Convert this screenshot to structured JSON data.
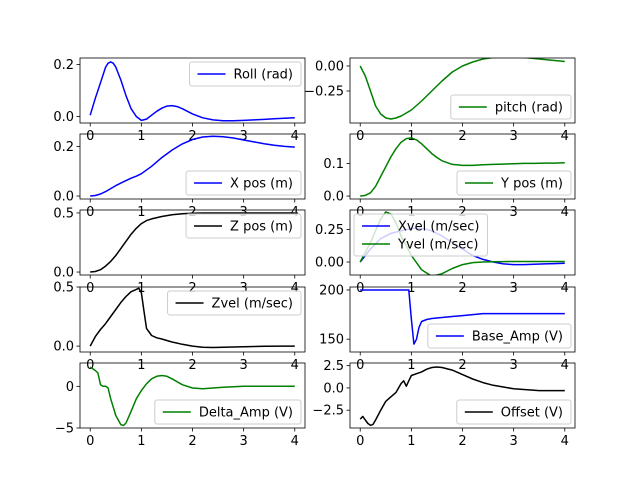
{
  "chart_data": [
    {
      "type": "line",
      "legend_position": "upper-right",
      "xlim": [
        -0.2,
        4.2
      ],
      "ylim": [
        -0.025,
        0.225
      ],
      "xticks": [
        0,
        1,
        2,
        3,
        4
      ],
      "xtick_labels": [
        "0",
        "1",
        "2",
        "3",
        "4"
      ],
      "yticks": [
        0,
        0.2
      ],
      "ytick_labels": [
        "0.0",
        "0.2"
      ],
      "series": [
        {
          "name": "Roll (rad)",
          "color": "#0000ff",
          "x": [
            0,
            0.1,
            0.2,
            0.3,
            0.35,
            0.4,
            0.45,
            0.5,
            0.6,
            0.7,
            0.8,
            0.9,
            1.0,
            1.1,
            1.2,
            1.3,
            1.4,
            1.5,
            1.6,
            1.7,
            1.8,
            1.9,
            2.0,
            2.2,
            2.4,
            2.6,
            2.8,
            3.0,
            3.2,
            3.4,
            3.6,
            3.8,
            4.0
          ],
          "y": [
            0.005,
            0.07,
            0.13,
            0.19,
            0.205,
            0.21,
            0.205,
            0.19,
            0.14,
            0.08,
            0.03,
            0.0,
            -0.015,
            -0.01,
            0.005,
            0.02,
            0.032,
            0.04,
            0.042,
            0.038,
            0.03,
            0.02,
            0.01,
            -0.005,
            -0.013,
            -0.016,
            -0.016,
            -0.015,
            -0.013,
            -0.011,
            -0.009,
            -0.007,
            -0.005
          ]
        }
      ]
    },
    {
      "type": "line",
      "legend_position": "lower-right",
      "xlim": [
        -0.2,
        4.2
      ],
      "ylim": [
        -0.57,
        0.08
      ],
      "xticks": [
        0,
        1,
        2,
        3,
        4
      ],
      "xtick_labels": [
        "0",
        "1",
        "2",
        "3",
        "4"
      ],
      "yticks": [
        0,
        -0.25
      ],
      "ytick_labels": [
        "0.00",
        "−0.25"
      ],
      "series": [
        {
          "name": "pitch (rad)",
          "color": "#008000",
          "x": [
            0,
            0.1,
            0.2,
            0.3,
            0.4,
            0.5,
            0.6,
            0.7,
            0.8,
            0.9,
            1.0,
            1.2,
            1.4,
            1.6,
            1.8,
            2.0,
            2.2,
            2.4,
            2.6,
            2.8,
            3.0,
            3.2,
            3.4,
            3.6,
            3.8,
            4.0
          ],
          "y": [
            0,
            -0.1,
            -0.25,
            -0.4,
            -0.48,
            -0.52,
            -0.53,
            -0.52,
            -0.5,
            -0.47,
            -0.44,
            -0.35,
            -0.25,
            -0.15,
            -0.06,
            0.0,
            0.04,
            0.07,
            0.085,
            0.09,
            0.09,
            0.085,
            0.075,
            0.065,
            0.055,
            0.045
          ]
        }
      ]
    },
    {
      "type": "line",
      "legend_position": "lower-right",
      "xlim": [
        -0.2,
        4.2
      ],
      "ylim": [
        -0.012,
        0.25
      ],
      "xticks": [
        0,
        1,
        2,
        3,
        4
      ],
      "xtick_labels": [
        "0",
        "1",
        "2",
        "3",
        "4"
      ],
      "yticks": [
        0,
        0.2
      ],
      "ytick_labels": [
        "0.0",
        "0.2"
      ],
      "series": [
        {
          "name": "X pos (m)",
          "color": "#0000ff",
          "x": [
            0,
            0.1,
            0.2,
            0.3,
            0.4,
            0.5,
            0.6,
            0.7,
            0.8,
            0.9,
            1.0,
            1.2,
            1.4,
            1.6,
            1.8,
            2.0,
            2.2,
            2.4,
            2.6,
            2.8,
            3.0,
            3.2,
            3.4,
            3.6,
            3.8,
            4.0
          ],
          "y": [
            0,
            0.002,
            0.008,
            0.018,
            0.03,
            0.042,
            0.052,
            0.062,
            0.072,
            0.08,
            0.09,
            0.12,
            0.155,
            0.185,
            0.21,
            0.228,
            0.238,
            0.241,
            0.239,
            0.234,
            0.226,
            0.218,
            0.211,
            0.205,
            0.2,
            0.197
          ]
        }
      ]
    },
    {
      "type": "line",
      "legend_position": "lower-right",
      "xlim": [
        -0.2,
        4.2
      ],
      "ylim": [
        -0.009,
        0.19
      ],
      "xticks": [
        0,
        1,
        2,
        3,
        4
      ],
      "xtick_labels": [
        "0",
        "1",
        "2",
        "3",
        "4"
      ],
      "yticks": [
        0,
        0.1
      ],
      "ytick_labels": [
        "0.0",
        "0.1"
      ],
      "series": [
        {
          "name": "Y pos (m)",
          "color": "#008000",
          "x": [
            0,
            0.1,
            0.2,
            0.3,
            0.4,
            0.5,
            0.6,
            0.7,
            0.8,
            0.9,
            1.0,
            1.1,
            1.2,
            1.3,
            1.4,
            1.5,
            1.6,
            1.8,
            2.0,
            2.2,
            2.4,
            2.6,
            2.8,
            3.0,
            3.2,
            3.4,
            3.6,
            3.8,
            4.0
          ],
          "y": [
            0,
            0.002,
            0.01,
            0.03,
            0.06,
            0.09,
            0.12,
            0.145,
            0.165,
            0.176,
            0.178,
            0.172,
            0.16,
            0.145,
            0.13,
            0.118,
            0.108,
            0.097,
            0.094,
            0.094,
            0.096,
            0.097,
            0.098,
            0.099,
            0.1,
            0.1,
            0.101,
            0.101,
            0.102
          ]
        }
      ]
    },
    {
      "type": "line",
      "legend_position": "upper-right",
      "xlim": [
        -0.2,
        4.2
      ],
      "ylim": [
        -0.025,
        0.525
      ],
      "xticks": [
        0,
        1,
        2,
        3,
        4
      ],
      "xtick_labels": [
        "0",
        "1",
        "2",
        "3",
        "4"
      ],
      "yticks": [
        0,
        0.5
      ],
      "ytick_labels": [
        "0.0",
        "0.5"
      ],
      "series": [
        {
          "name": "Z pos (m)",
          "color": "#000000",
          "x": [
            0,
            0.1,
            0.2,
            0.3,
            0.4,
            0.5,
            0.6,
            0.7,
            0.8,
            0.9,
            1.0,
            1.1,
            1.2,
            1.4,
            1.6,
            1.8,
            2.0,
            2.2,
            2.4,
            2.6,
            3.0,
            3.4,
            3.8,
            4.0
          ],
          "y": [
            0,
            0.005,
            0.02,
            0.05,
            0.09,
            0.14,
            0.2,
            0.26,
            0.32,
            0.37,
            0.41,
            0.435,
            0.45,
            0.47,
            0.485,
            0.493,
            0.498,
            0.5,
            0.5,
            0.5,
            0.5,
            0.5,
            0.5,
            0.5
          ]
        }
      ]
    },
    {
      "type": "line",
      "legend_position": "upper-left",
      "xlim": [
        -0.2,
        4.2
      ],
      "ylim": [
        -0.1,
        0.4
      ],
      "xticks": [
        0,
        1,
        2,
        3,
        4
      ],
      "xtick_labels": [
        "0",
        "1",
        "2",
        "3",
        "4"
      ],
      "yticks": [
        0,
        0.25
      ],
      "ytick_labels": [
        "0.00",
        "0.25"
      ],
      "series": [
        {
          "name": "Xvel (m/sec)",
          "color": "#0000ff",
          "x": [
            0,
            0.2,
            0.4,
            0.6,
            0.8,
            1.0,
            1.2,
            1.4,
            1.6,
            1.8,
            2.0,
            2.2,
            2.4,
            2.6,
            2.8,
            3.0,
            3.2,
            3.4,
            3.6,
            3.8,
            4.0
          ],
          "y": [
            0,
            0.1,
            0.18,
            0.22,
            0.24,
            0.26,
            0.26,
            0.24,
            0.2,
            0.15,
            0.1,
            0.05,
            0.02,
            0.0,
            -0.015,
            -0.02,
            -0.02,
            -0.018,
            -0.015,
            -0.012,
            -0.01
          ]
        },
        {
          "name": "Yvel (m/sec)",
          "color": "#008000",
          "x": [
            0,
            0.2,
            0.4,
            0.5,
            0.6,
            0.7,
            0.8,
            1.0,
            1.2,
            1.4,
            1.6,
            1.8,
            2.0,
            2.2,
            2.4,
            2.6,
            2.8,
            3.0,
            3.2,
            3.4,
            3.6,
            3.8,
            4.0
          ],
          "y": [
            0,
            0.15,
            0.33,
            0.385,
            0.37,
            0.3,
            0.2,
            0.05,
            -0.06,
            -0.11,
            -0.09,
            -0.05,
            -0.02,
            -0.005,
            0.0,
            0.002,
            0.003,
            0.004,
            0.004,
            0.004,
            0.004,
            0.004,
            0.004
          ]
        }
      ]
    },
    {
      "type": "line",
      "legend_position": "upper-right",
      "xlim": [
        -0.2,
        4.2
      ],
      "ylim": [
        -0.05,
        0.5
      ],
      "xticks": [
        0,
        1,
        2,
        3,
        4
      ],
      "xtick_labels": [
        "0",
        "1",
        "2",
        "3",
        "4"
      ],
      "yticks": [
        0,
        0.5
      ],
      "ytick_labels": [
        "0.0",
        "0.5"
      ],
      "series": [
        {
          "name": "Zvel (m/sec)",
          "color": "#000000",
          "x": [
            0,
            0.1,
            0.2,
            0.3,
            0.4,
            0.5,
            0.6,
            0.7,
            0.8,
            0.9,
            0.95,
            1.0,
            1.05,
            1.1,
            1.2,
            1.3,
            1.4,
            1.6,
            1.8,
            2.0,
            2.2,
            2.4,
            2.6,
            2.8,
            3.0,
            3.4,
            3.8,
            4.0
          ],
          "y": [
            0,
            0.08,
            0.14,
            0.19,
            0.25,
            0.31,
            0.37,
            0.42,
            0.46,
            0.48,
            0.49,
            0.45,
            0.3,
            0.15,
            0.09,
            0.07,
            0.06,
            0.035,
            0.015,
            0.0,
            -0.01,
            -0.012,
            -0.01,
            -0.008,
            -0.005,
            -0.002,
            0.0,
            0.0
          ]
        }
      ]
    },
    {
      "type": "line",
      "legend_position": "lower-right",
      "xlim": [
        -0.2,
        4.2
      ],
      "ylim": [
        137,
        203
      ],
      "xticks": [
        0,
        1,
        2,
        3,
        4
      ],
      "xtick_labels": [
        "0",
        "1",
        "2",
        "3",
        "4"
      ],
      "yticks": [
        150,
        200
      ],
      "ytick_labels": [
        "150",
        "200"
      ],
      "series": [
        {
          "name": "Base_Amp (V)",
          "color": "#0000ff",
          "x": [
            0,
            0.5,
            0.95,
            1.0,
            1.05,
            1.1,
            1.15,
            1.2,
            1.3,
            1.4,
            1.6,
            1.8,
            2.0,
            2.2,
            2.4,
            2.6,
            2.8,
            3.0,
            3.5,
            4.0
          ],
          "y": [
            200,
            200,
            200,
            170,
            145,
            150,
            162,
            168,
            170,
            171,
            172,
            173,
            174,
            175,
            176,
            176,
            176,
            176,
            176,
            176
          ]
        }
      ]
    },
    {
      "type": "line",
      "legend_position": "lower-right",
      "xlim": [
        -0.2,
        4.2
      ],
      "ylim": [
        -5,
        2.8
      ],
      "xticks": [
        0,
        1,
        2,
        3,
        4
      ],
      "xtick_labels": [
        "0",
        "1",
        "2",
        "3",
        "4"
      ],
      "yticks": [
        -5,
        0
      ],
      "ytick_labels": [
        "−5",
        "0"
      ],
      "series": [
        {
          "name": "Delta_Amp (V)",
          "color": "#008000",
          "x": [
            0,
            0.05,
            0.1,
            0.15,
            0.2,
            0.25,
            0.3,
            0.35,
            0.4,
            0.5,
            0.6,
            0.65,
            0.7,
            0.8,
            0.9,
            1.0,
            1.1,
            1.2,
            1.3,
            1.4,
            1.5,
            1.6,
            1.8,
            2.0,
            2.2,
            2.4,
            2.6,
            3.0,
            3.5,
            4.0
          ],
          "y": [
            2.3,
            2.1,
            1.9,
            1.6,
            0.2,
            0.0,
            0.0,
            -0.2,
            -1.5,
            -3.5,
            -4.6,
            -4.7,
            -4.4,
            -3.0,
            -1.5,
            -0.5,
            0.3,
            0.9,
            1.2,
            1.3,
            1.2,
            0.9,
            0.2,
            -0.2,
            -0.3,
            -0.2,
            -0.1,
            0.0,
            0.0,
            0.0
          ]
        }
      ]
    },
    {
      "type": "line",
      "legend_position": "lower-right",
      "xlim": [
        -0.2,
        4.2
      ],
      "ylim": [
        -4.5,
        2.8
      ],
      "xticks": [
        0,
        1,
        2,
        3,
        4
      ],
      "xtick_labels": [
        "0",
        "1",
        "2",
        "3",
        "4"
      ],
      "yticks": [
        2.5,
        0,
        -2.5
      ],
      "ytick_labels": [
        "2.5",
        "0.0",
        "−2.5"
      ],
      "series": [
        {
          "name": "Offset (V)",
          "color": "#000000",
          "x": [
            0,
            0.05,
            0.1,
            0.15,
            0.2,
            0.25,
            0.3,
            0.4,
            0.5,
            0.6,
            0.7,
            0.8,
            0.85,
            0.9,
            0.95,
            1.0,
            1.1,
            1.2,
            1.3,
            1.4,
            1.5,
            1.6,
            1.8,
            2.0,
            2.2,
            2.4,
            2.6,
            2.8,
            3.0,
            3.5,
            4.0
          ],
          "y": [
            -3.5,
            -3.2,
            -3.6,
            -4.0,
            -4.2,
            -4.1,
            -3.6,
            -2.5,
            -1.5,
            -1.0,
            -0.5,
            0.5,
            0.8,
            0.2,
            0.8,
            1.4,
            1.6,
            1.8,
            2.1,
            2.3,
            2.35,
            2.3,
            2.0,
            1.5,
            1.0,
            0.6,
            0.3,
            0.1,
            -0.1,
            -0.3,
            -0.3
          ]
        }
      ]
    }
  ]
}
